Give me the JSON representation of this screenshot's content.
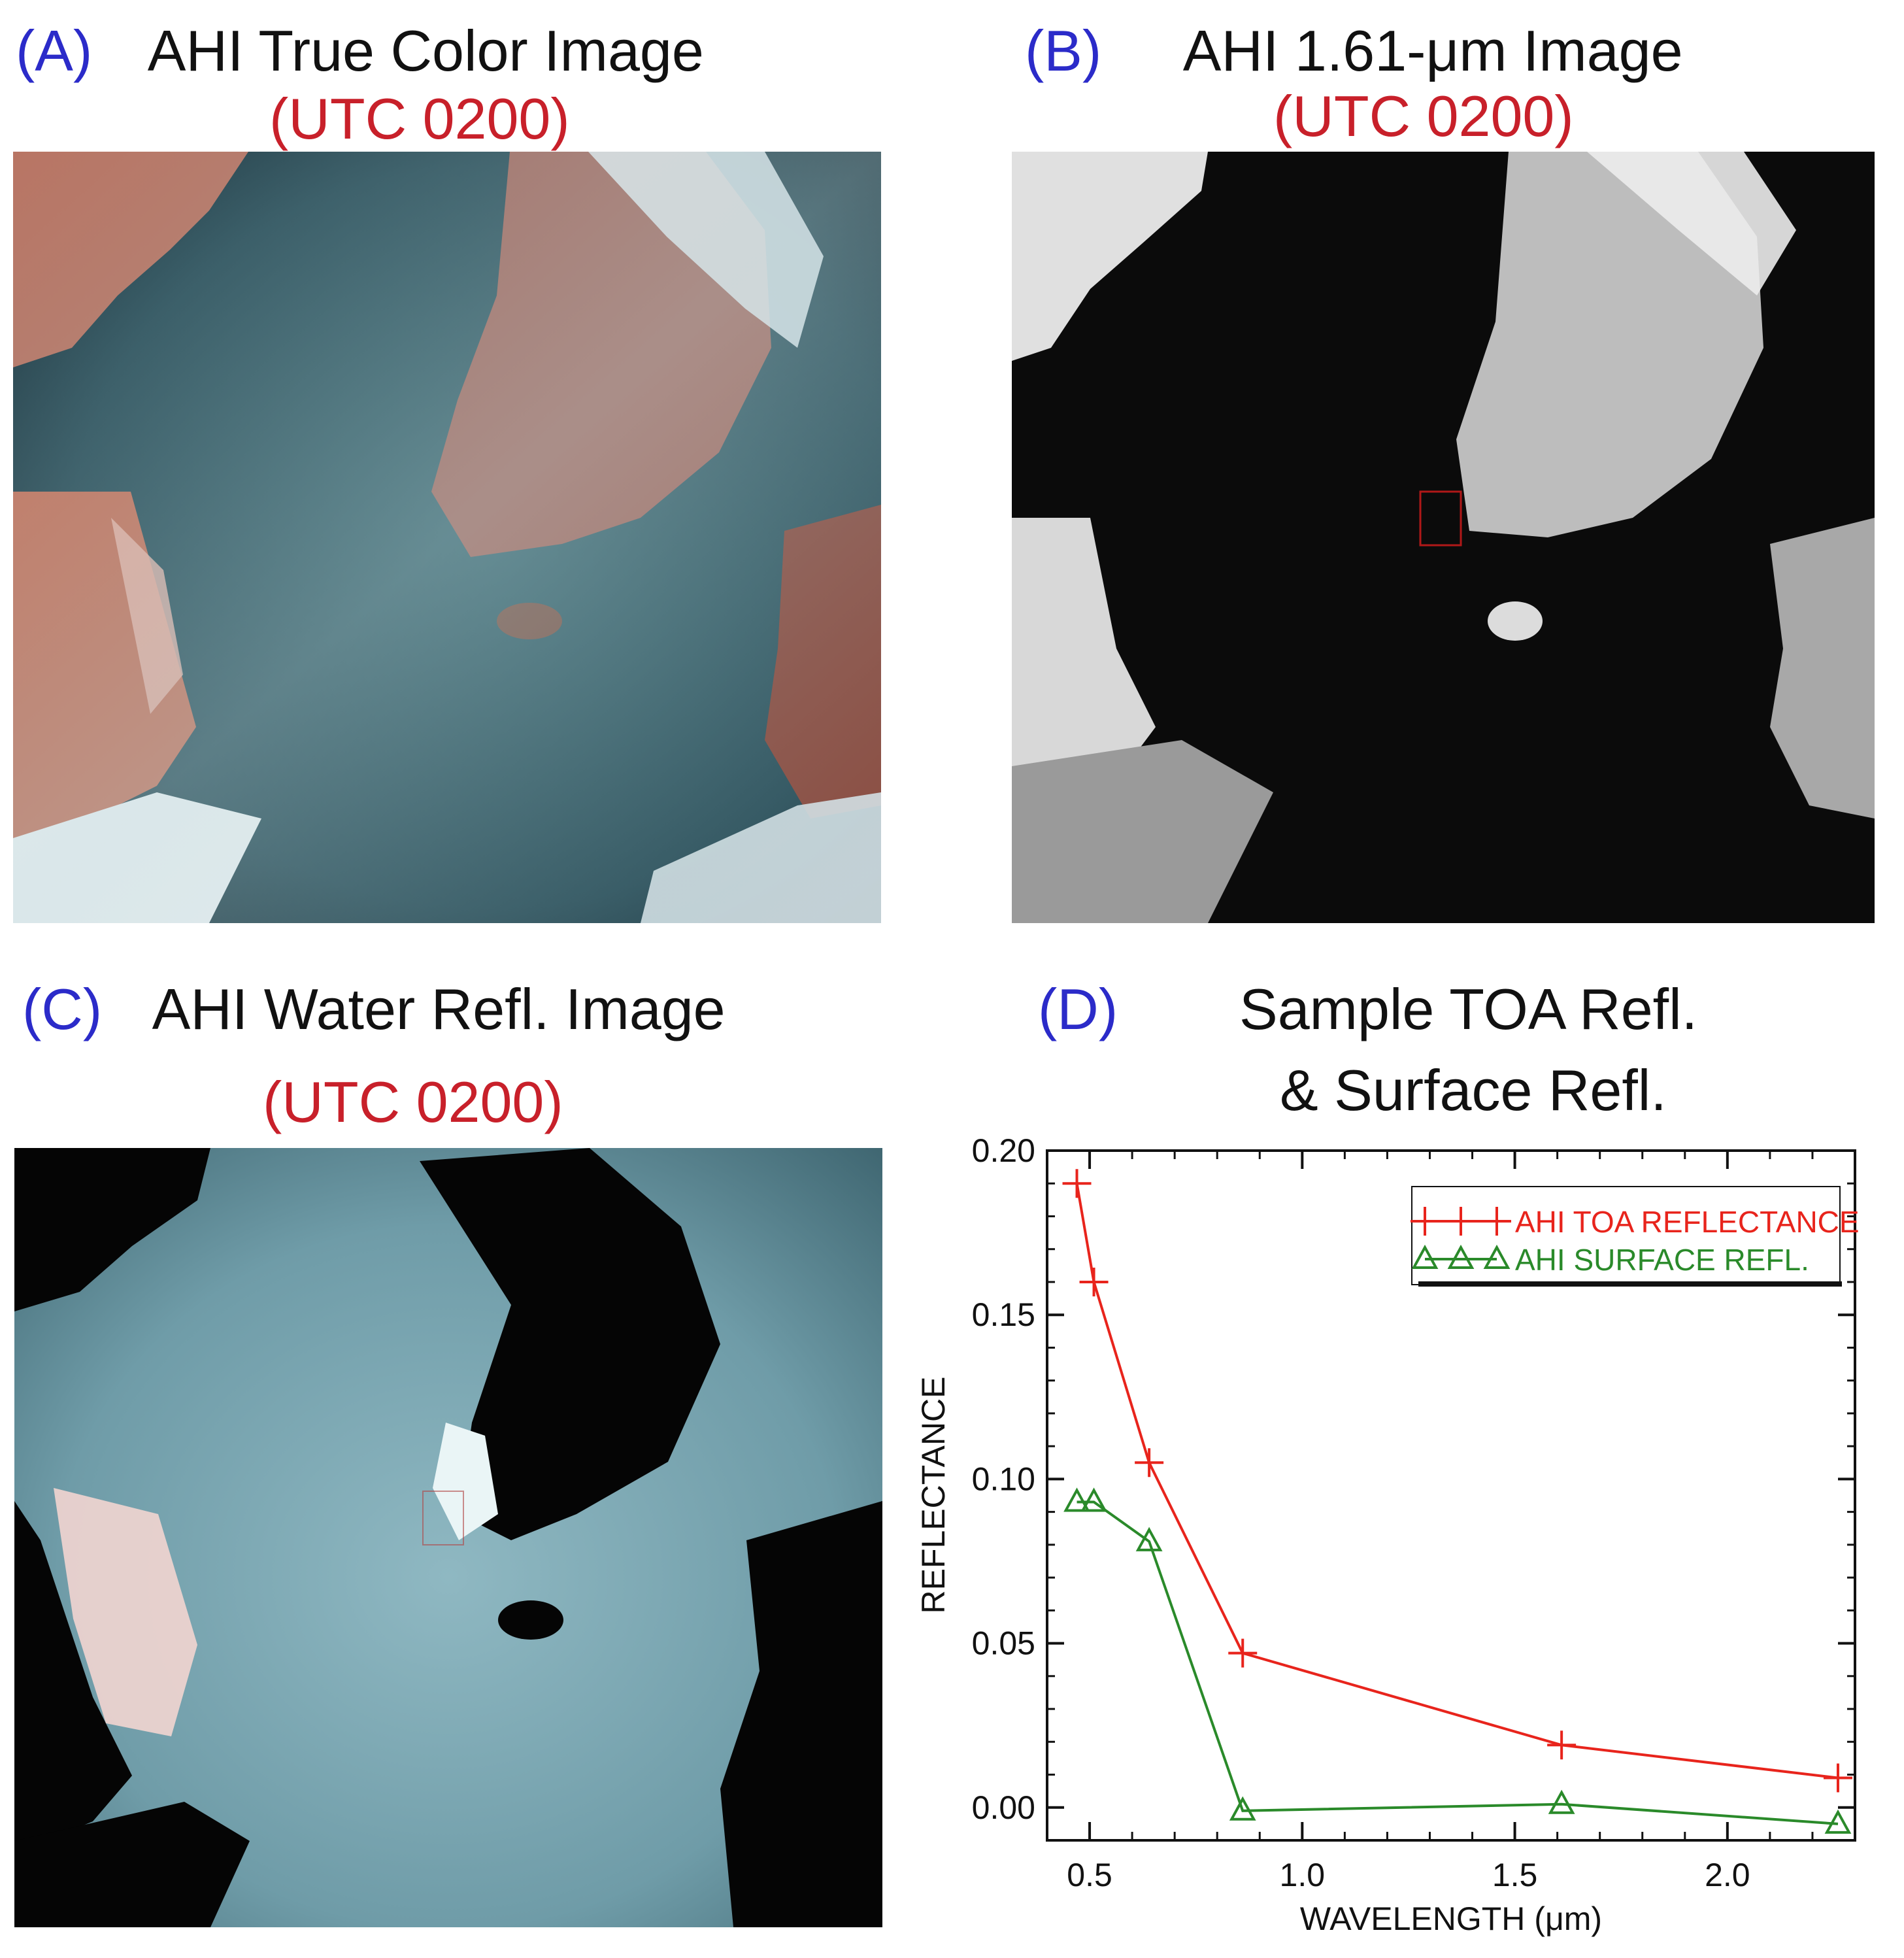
{
  "panels": {
    "a": {
      "letter": "(A)",
      "title": "AHI True Color Image",
      "time": "(UTC 0200)"
    },
    "b": {
      "letter": "(B)",
      "title": "AHI 1.61-μm Image",
      "time": "(UTC 0200)"
    },
    "c": {
      "letter": "(C)",
      "title": "AHI Water Refl. Image",
      "time": "(UTC 0200)"
    },
    "d": {
      "letter": "(D)",
      "title_line1": "Sample TOA Refl.",
      "title_line2": "& Surface Refl."
    }
  },
  "chart_data": {
    "type": "line",
    "xlabel": "WAVELENGTH (μm)",
    "ylabel": "REFLECTANCE",
    "xlim": [
      0.4,
      2.3
    ],
    "ylim": [
      -0.01,
      0.2
    ],
    "xticks": [
      0.5,
      1.0,
      1.5,
      2.0
    ],
    "xtick_labels": [
      "0.5",
      "1.0",
      "1.5",
      "2.0"
    ],
    "yticks": [
      0.0,
      0.05,
      0.1,
      0.15,
      0.2
    ],
    "ytick_labels": [
      "0.00",
      "0.05",
      "0.10",
      "0.15",
      "0.20"
    ],
    "legend_position": "top-right",
    "series": [
      {
        "name": "AHI TOA REFLECTANCE",
        "color": "#e8241c",
        "marker": "plus",
        "x": [
          0.47,
          0.51,
          0.64,
          0.86,
          1.61,
          2.26
        ],
        "y": [
          0.19,
          0.16,
          0.105,
          0.047,
          0.019,
          0.009
        ]
      },
      {
        "name": "AHI SURFACE REFL.",
        "color": "#2a8a2a",
        "marker": "triangle",
        "x": [
          0.47,
          0.51,
          0.64,
          0.86,
          1.61,
          2.26
        ],
        "y": [
          0.093,
          0.093,
          0.081,
          -0.001,
          0.001,
          -0.005
        ]
      }
    ]
  }
}
